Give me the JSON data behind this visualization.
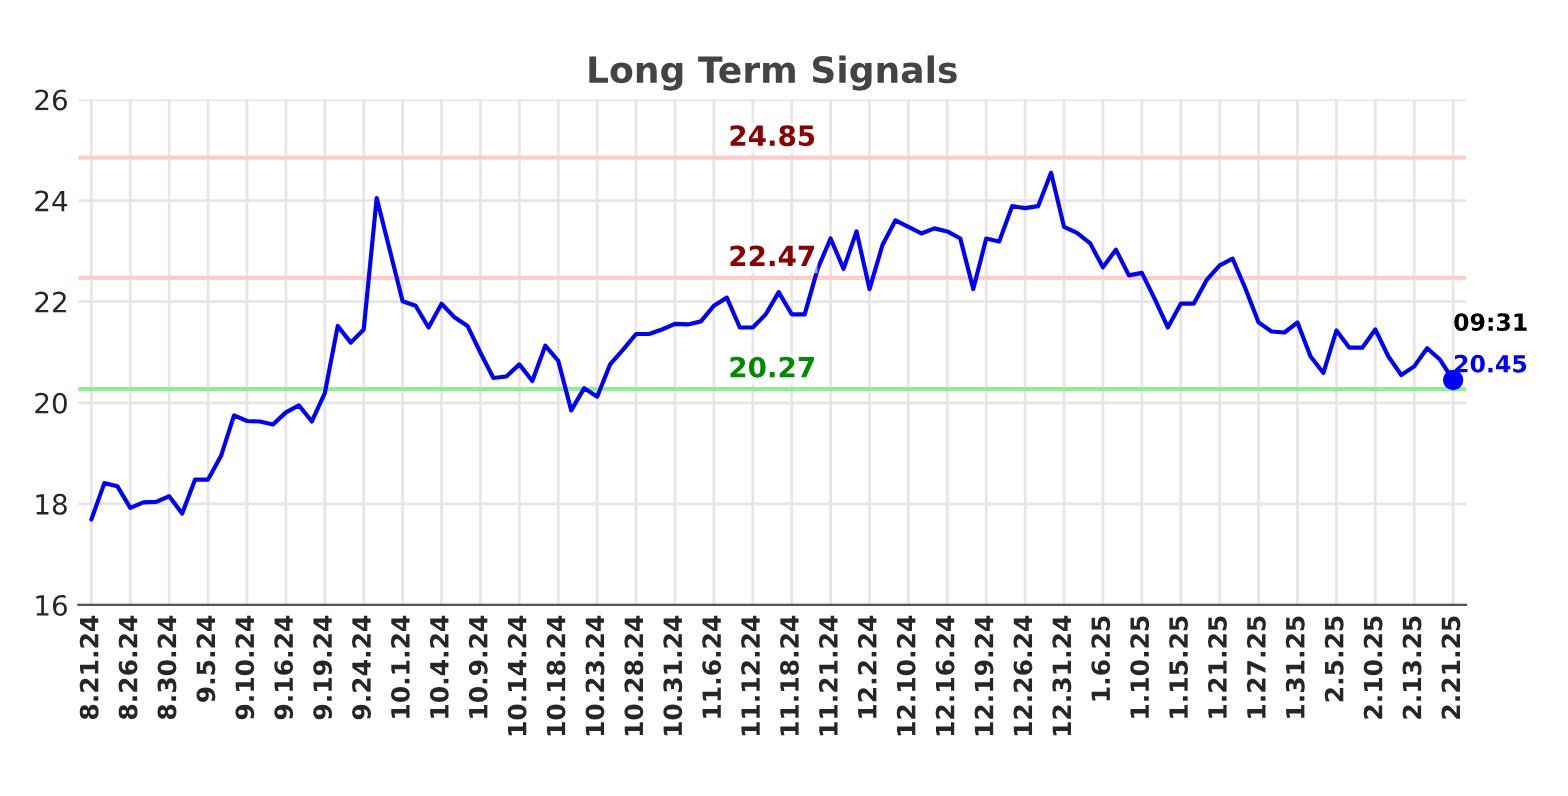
{
  "chart_data": {
    "type": "line",
    "title": "Long Term Signals",
    "categories": [
      "8.21.24",
      null,
      null,
      "8.26.24",
      null,
      null,
      "8.30.24",
      null,
      null,
      "9.5.24",
      null,
      null,
      "9.10.24",
      null,
      null,
      "9.16.24",
      null,
      null,
      "9.19.24",
      null,
      null,
      "9.24.24",
      null,
      null,
      "10.1.24",
      null,
      null,
      "10.4.24",
      null,
      null,
      "10.9.24",
      null,
      null,
      "10.14.24",
      null,
      null,
      "10.18.24",
      null,
      null,
      "10.23.24",
      null,
      null,
      "10.28.24",
      null,
      null,
      "10.31.24",
      null,
      null,
      "11.6.24",
      null,
      null,
      "11.12.24",
      null,
      null,
      "11.18.24",
      null,
      null,
      "11.21.24",
      null,
      null,
      "12.2.24",
      null,
      null,
      "12.10.24",
      null,
      null,
      "12.16.24",
      null,
      null,
      "12.19.24",
      null,
      null,
      "12.26.24",
      null,
      null,
      "12.31.24",
      null,
      null,
      "1.6.25",
      null,
      null,
      "1.10.25",
      null,
      null,
      "1.15.25",
      null,
      null,
      "1.21.25",
      null,
      null,
      "1.27.25",
      null,
      null,
      "1.31.25",
      null,
      null,
      "2.5.25",
      null,
      null,
      "2.10.25",
      null,
      null,
      "2.13.25",
      null,
      null,
      "2.21.25"
    ],
    "series": [
      {
        "color": "#0000ff",
        "marker": "none",
        "values": [
          17.69,
          18.41,
          18.35,
          17.92,
          18.03,
          18.04,
          18.15,
          17.81,
          18.48,
          18.48,
          18.95,
          19.75,
          19.64,
          19.63,
          19.57,
          19.81,
          19.95,
          19.63,
          20.19,
          21.52,
          21.19,
          21.45,
          24.05,
          23.03,
          22.01,
          21.92,
          21.49,
          21.96,
          21.69,
          21.52,
          20.99,
          20.49,
          20.52,
          20.76,
          20.43,
          21.13,
          20.83,
          19.85,
          20.29,
          20.12,
          20.76,
          21.05,
          21.36,
          21.36,
          21.45,
          21.56,
          21.55,
          21.61,
          21.92,
          22.08,
          21.49,
          21.49,
          21.75,
          22.19,
          21.75,
          21.75,
          22.65,
          23.25,
          22.65,
          23.39,
          22.25,
          23.12,
          23.61,
          23.48,
          23.35,
          23.45,
          23.39,
          23.25,
          22.25,
          23.25,
          23.19,
          23.89,
          23.85,
          23.89,
          24.55,
          23.48,
          23.36,
          23.16,
          22.68,
          23.03,
          22.52,
          22.57,
          22.05,
          21.49,
          21.96,
          21.96,
          22.43,
          22.72,
          22.85,
          22.25,
          21.59,
          21.41,
          21.39,
          21.59,
          20.92,
          20.59,
          21.43,
          21.09,
          21.09,
          21.45,
          20.92,
          20.55,
          20.72,
          21.08,
          20.85,
          20.45
        ]
      },
      {
        "type": "scatter",
        "color": "#0000ff",
        "marker": "circle",
        "x": [
          "2.21.25"
        ],
        "values": [
          20.45
        ]
      }
    ],
    "ylim": [
      16,
      26
    ],
    "yticks": [
      16,
      18,
      20,
      22,
      24,
      26
    ],
    "grid": true,
    "legend": false,
    "ref_lines": [
      {
        "axis": "y",
        "value": 24.85,
        "label": "24.85",
        "color": "#ffcccc"
      },
      {
        "axis": "y",
        "value": 22.47,
        "label": "22.47",
        "color": "#ffcccc"
      },
      {
        "axis": "y",
        "value": 20.27,
        "label": "20.27",
        "color": "#90ee90"
      }
    ],
    "annotations": [
      {
        "text": "09:31",
        "x": "2.21.25",
        "y": 20.45
      },
      {
        "text": "20.45",
        "x": "2.21.25",
        "y": 20.45
      }
    ]
  }
}
